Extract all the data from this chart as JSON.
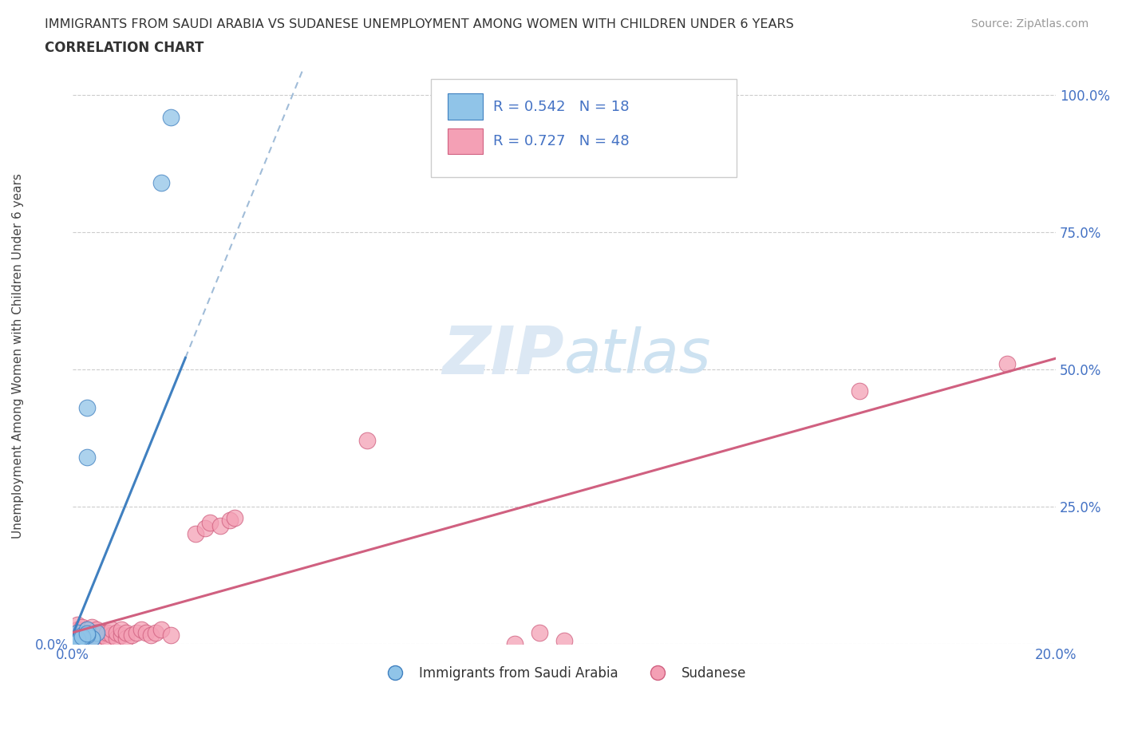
{
  "title_line1": "IMMIGRANTS FROM SAUDI ARABIA VS SUDANESE UNEMPLOYMENT AMONG WOMEN WITH CHILDREN UNDER 6 YEARS",
  "title_line2": "CORRELATION CHART",
  "source": "Source: ZipAtlas.com",
  "ylabel": "Unemployment Among Women with Children Under 6 years",
  "xlim": [
    0.0,
    0.2
  ],
  "ylim": [
    0.0,
    1.05
  ],
  "legend_label1": "Immigrants from Saudi Arabia",
  "legend_label2": "Sudanese",
  "legend_R1": "R = 0.542",
  "legend_N1": "N = 18",
  "legend_R2": "R = 0.727",
  "legend_N2": "N = 48",
  "color_blue": "#90c4e8",
  "color_pink": "#f4a0b5",
  "line_blue": "#4080c0",
  "line_pink": "#d06080",
  "line_dashed_blue": "#a0bcd8",
  "watermark_color": "#dce8f4",
  "saudi_x": [
    0.02,
    0.018,
    0.003,
    0.003,
    0.002,
    0.001,
    0.001,
    0.002,
    0.003,
    0.004,
    0.005,
    0.004,
    0.003,
    0.002,
    0.001,
    0.001,
    0.002,
    0.003
  ],
  "saudi_y": [
    0.96,
    0.84,
    0.43,
    0.34,
    0.01,
    0.02,
    0.01,
    0.015,
    0.025,
    0.01,
    0.02,
    0.01,
    0.015,
    0.01,
    0.005,
    0.008,
    0.012,
    0.018
  ],
  "sudanese_x": [
    0.001,
    0.001,
    0.001,
    0.002,
    0.002,
    0.002,
    0.003,
    0.003,
    0.003,
    0.003,
    0.004,
    0.004,
    0.004,
    0.005,
    0.005,
    0.005,
    0.006,
    0.006,
    0.007,
    0.007,
    0.008,
    0.008,
    0.009,
    0.009,
    0.01,
    0.01,
    0.011,
    0.011,
    0.012,
    0.013,
    0.014,
    0.015,
    0.016,
    0.017,
    0.018,
    0.02,
    0.025,
    0.027,
    0.028,
    0.03,
    0.032,
    0.033,
    0.06,
    0.09,
    0.095,
    0.1,
    0.16,
    0.19
  ],
  "sudanese_y": [
    0.015,
    0.025,
    0.035,
    0.01,
    0.02,
    0.03,
    0.01,
    0.02,
    0.015,
    0.025,
    0.01,
    0.02,
    0.03,
    0.015,
    0.025,
    0.01,
    0.015,
    0.02,
    0.01,
    0.02,
    0.015,
    0.025,
    0.01,
    0.02,
    0.015,
    0.025,
    0.01,
    0.02,
    0.015,
    0.02,
    0.025,
    0.02,
    0.015,
    0.02,
    0.025,
    0.015,
    0.2,
    0.21,
    0.22,
    0.215,
    0.225,
    0.23,
    0.37,
    0.0,
    0.02,
    0.005,
    0.46,
    0.51
  ],
  "blue_line_x0": 0.0,
  "blue_line_y0": 0.015,
  "blue_line_slope": 22.0,
  "blue_solid_xend": 0.023,
  "blue_dash_xend": 0.2,
  "pink_line_x0": 0.0,
  "pink_line_y0": 0.02,
  "pink_line_xend": 0.2,
  "pink_line_slope": 2.5
}
